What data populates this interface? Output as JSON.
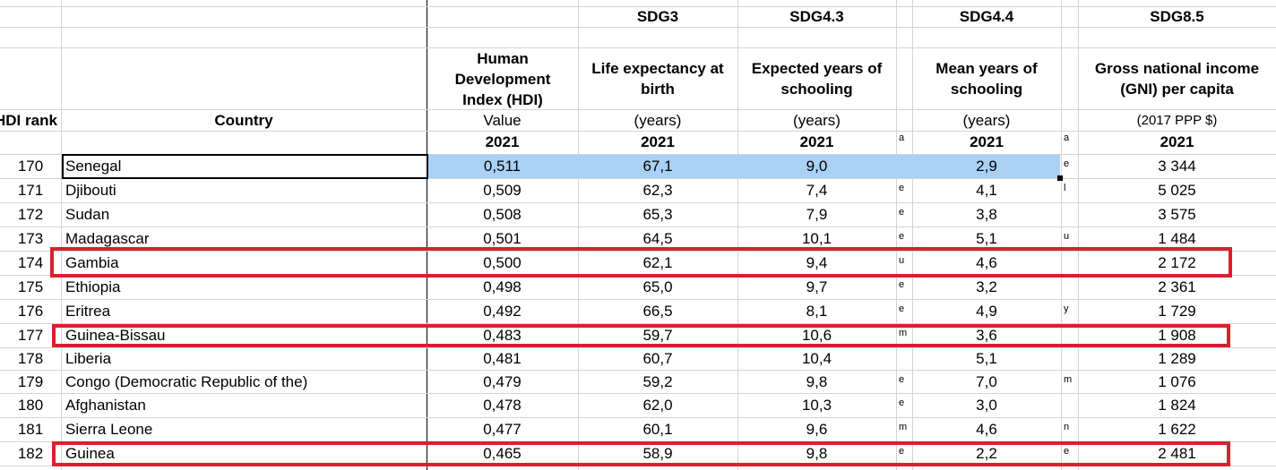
{
  "header": {
    "sdg": [
      "SDG3",
      "SDG4.3",
      "SDG4.4",
      "SDG8.5"
    ],
    "col_rank": "HDI rank",
    "col_country": "Country",
    "col_hdi": "Human Development Index (HDI)",
    "col_life": "Life expectancy at birth",
    "col_exp": "Expected years of schooling",
    "col_mean": "Mean years of schooling",
    "col_gni": "Gross national income (GNI) per capita",
    "unit_value": "Value",
    "unit_years": "(years)",
    "unit_gni": "(2017 PPP $)",
    "year": "2021",
    "note_a": "a"
  },
  "rows": [
    {
      "rank": "170",
      "country": "Senegal",
      "hdi": "0,511",
      "life": "67,1",
      "exp": "9,0",
      "exp_note": "",
      "mean": "2,9",
      "mean_note": "e",
      "gni": "3 344"
    },
    {
      "rank": "171",
      "country": "Djibouti",
      "hdi": "0,509",
      "life": "62,3",
      "exp": "7,4",
      "exp_note": "e",
      "mean": "4,1",
      "mean_note": "l",
      "gni": "5 025"
    },
    {
      "rank": "172",
      "country": "Sudan",
      "hdi": "0,508",
      "life": "65,3",
      "exp": "7,9",
      "exp_note": "e",
      "mean": "3,8",
      "mean_note": "",
      "gni": "3 575"
    },
    {
      "rank": "173",
      "country": "Madagascar",
      "hdi": "0,501",
      "life": "64,5",
      "exp": "10,1",
      "exp_note": "e",
      "mean": "5,1",
      "mean_note": "u",
      "gni": "1 484"
    },
    {
      "rank": "174",
      "country": "Gambia",
      "hdi": "0,500",
      "life": "62,1",
      "exp": "9,4",
      "exp_note": "u",
      "mean": "4,6",
      "mean_note": "",
      "gni": "2 172"
    },
    {
      "rank": "175",
      "country": "Ethiopia",
      "hdi": "0,498",
      "life": "65,0",
      "exp": "9,7",
      "exp_note": "e",
      "mean": "3,2",
      "mean_note": "",
      "gni": "2 361"
    },
    {
      "rank": "176",
      "country": "Eritrea",
      "hdi": "0,492",
      "life": "66,5",
      "exp": "8,1",
      "exp_note": "e",
      "mean": "4,9",
      "mean_note": "y",
      "gni": "1 729"
    },
    {
      "rank": "177",
      "country": "Guinea-Bissau",
      "hdi": "0,483",
      "life": "59,7",
      "exp": "10,6",
      "exp_note": "m",
      "mean": "3,6",
      "mean_note": "",
      "gni": "1 908"
    },
    {
      "rank": "178",
      "country": "Liberia",
      "hdi": "0,481",
      "life": "60,7",
      "exp": "10,4",
      "exp_note": "",
      "mean": "5,1",
      "mean_note": "",
      "gni": "1 289"
    },
    {
      "rank": "179",
      "country": "Congo (Democratic Republic of the)",
      "hdi": "0,479",
      "life": "59,2",
      "exp": "9,8",
      "exp_note": "e",
      "mean": "7,0",
      "mean_note": "m",
      "gni": "1 076"
    },
    {
      "rank": "180",
      "country": "Afghanistan",
      "hdi": "0,478",
      "life": "62,0",
      "exp": "10,3",
      "exp_note": "e",
      "mean": "3,0",
      "mean_note": "",
      "gni": "1 824"
    },
    {
      "rank": "181",
      "country": "Sierra Leone",
      "hdi": "0,477",
      "life": "60,1",
      "exp": "9,6",
      "exp_note": "m",
      "mean": "4,6",
      "mean_note": "n",
      "gni": "1 622"
    },
    {
      "rank": "182",
      "country": "Guinea",
      "hdi": "0,465",
      "life": "58,9",
      "exp": "9,8",
      "exp_note": "e",
      "mean": "2,2",
      "mean_note": "e",
      "gni": "2 481"
    }
  ],
  "highlight_color": "#d8212f",
  "selection_color": "#a9d0f5"
}
